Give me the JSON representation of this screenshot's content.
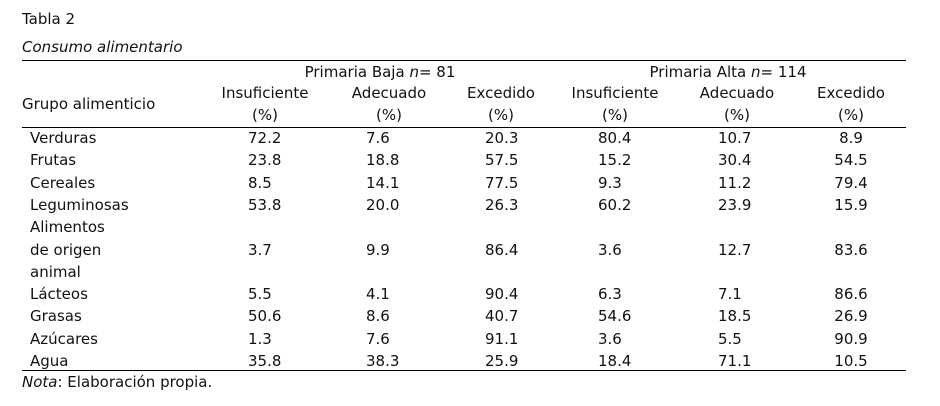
{
  "table_label": "Tabla 2",
  "table_title": "Consumo alimentario",
  "row_header": "Grupo alimenticio",
  "groups": [
    {
      "name": "Primaria Baja ",
      "n_label": "n",
      "n_value": "= 81"
    },
    {
      "name": "Primaria Alta ",
      "n_label": "n",
      "n_value": "= 114"
    }
  ],
  "columns": [
    "Insuficiente",
    "Adecuado",
    "Excedido",
    "Insuficiente",
    "Adecuado",
    "Excedido"
  ],
  "unit": "(%)",
  "rows": [
    {
      "label": [
        "Verduras"
      ],
      "values": [
        "72.2",
        "7.6",
        "20.3",
        "80.4",
        "10.7",
        "8.9"
      ]
    },
    {
      "label": [
        "Frutas"
      ],
      "values": [
        "23.8",
        "18.8",
        "57.5",
        "15.2",
        "30.4",
        "54.5"
      ]
    },
    {
      "label": [
        "Cereales"
      ],
      "values": [
        "8.5",
        "14.1",
        "77.5",
        "9.3",
        "11.2",
        "79.4"
      ]
    },
    {
      "label": [
        "Leguminosas"
      ],
      "values": [
        "53.8",
        "20.0",
        "26.3",
        "60.2",
        "23.9",
        "15.9"
      ]
    },
    {
      "label": [
        "Alimentos",
        "de origen",
        "animal"
      ],
      "values": [
        "3.7",
        "9.9",
        "86.4",
        "3.6",
        "12.7",
        "83.6"
      ]
    },
    {
      "label": [
        "Lácteos"
      ],
      "values": [
        "5.5",
        "4.1",
        "90.4",
        "6.3",
        "7.1",
        "86.6"
      ]
    },
    {
      "label": [
        "Grasas"
      ],
      "values": [
        "50.6",
        "8.6",
        "40.7",
        "54.6",
        "18.5",
        "26.9"
      ]
    },
    {
      "label": [
        "Azúcares"
      ],
      "values": [
        "1.3",
        "7.6",
        "91.1",
        "3.6",
        "5.5",
        "90.9"
      ]
    },
    {
      "label": [
        "Agua"
      ],
      "values": [
        "35.8",
        "38.3",
        "25.9",
        "18.4",
        "71.1",
        "10.5"
      ]
    }
  ],
  "note_label": "Nota",
  "note_text": ": Elaboración propia."
}
